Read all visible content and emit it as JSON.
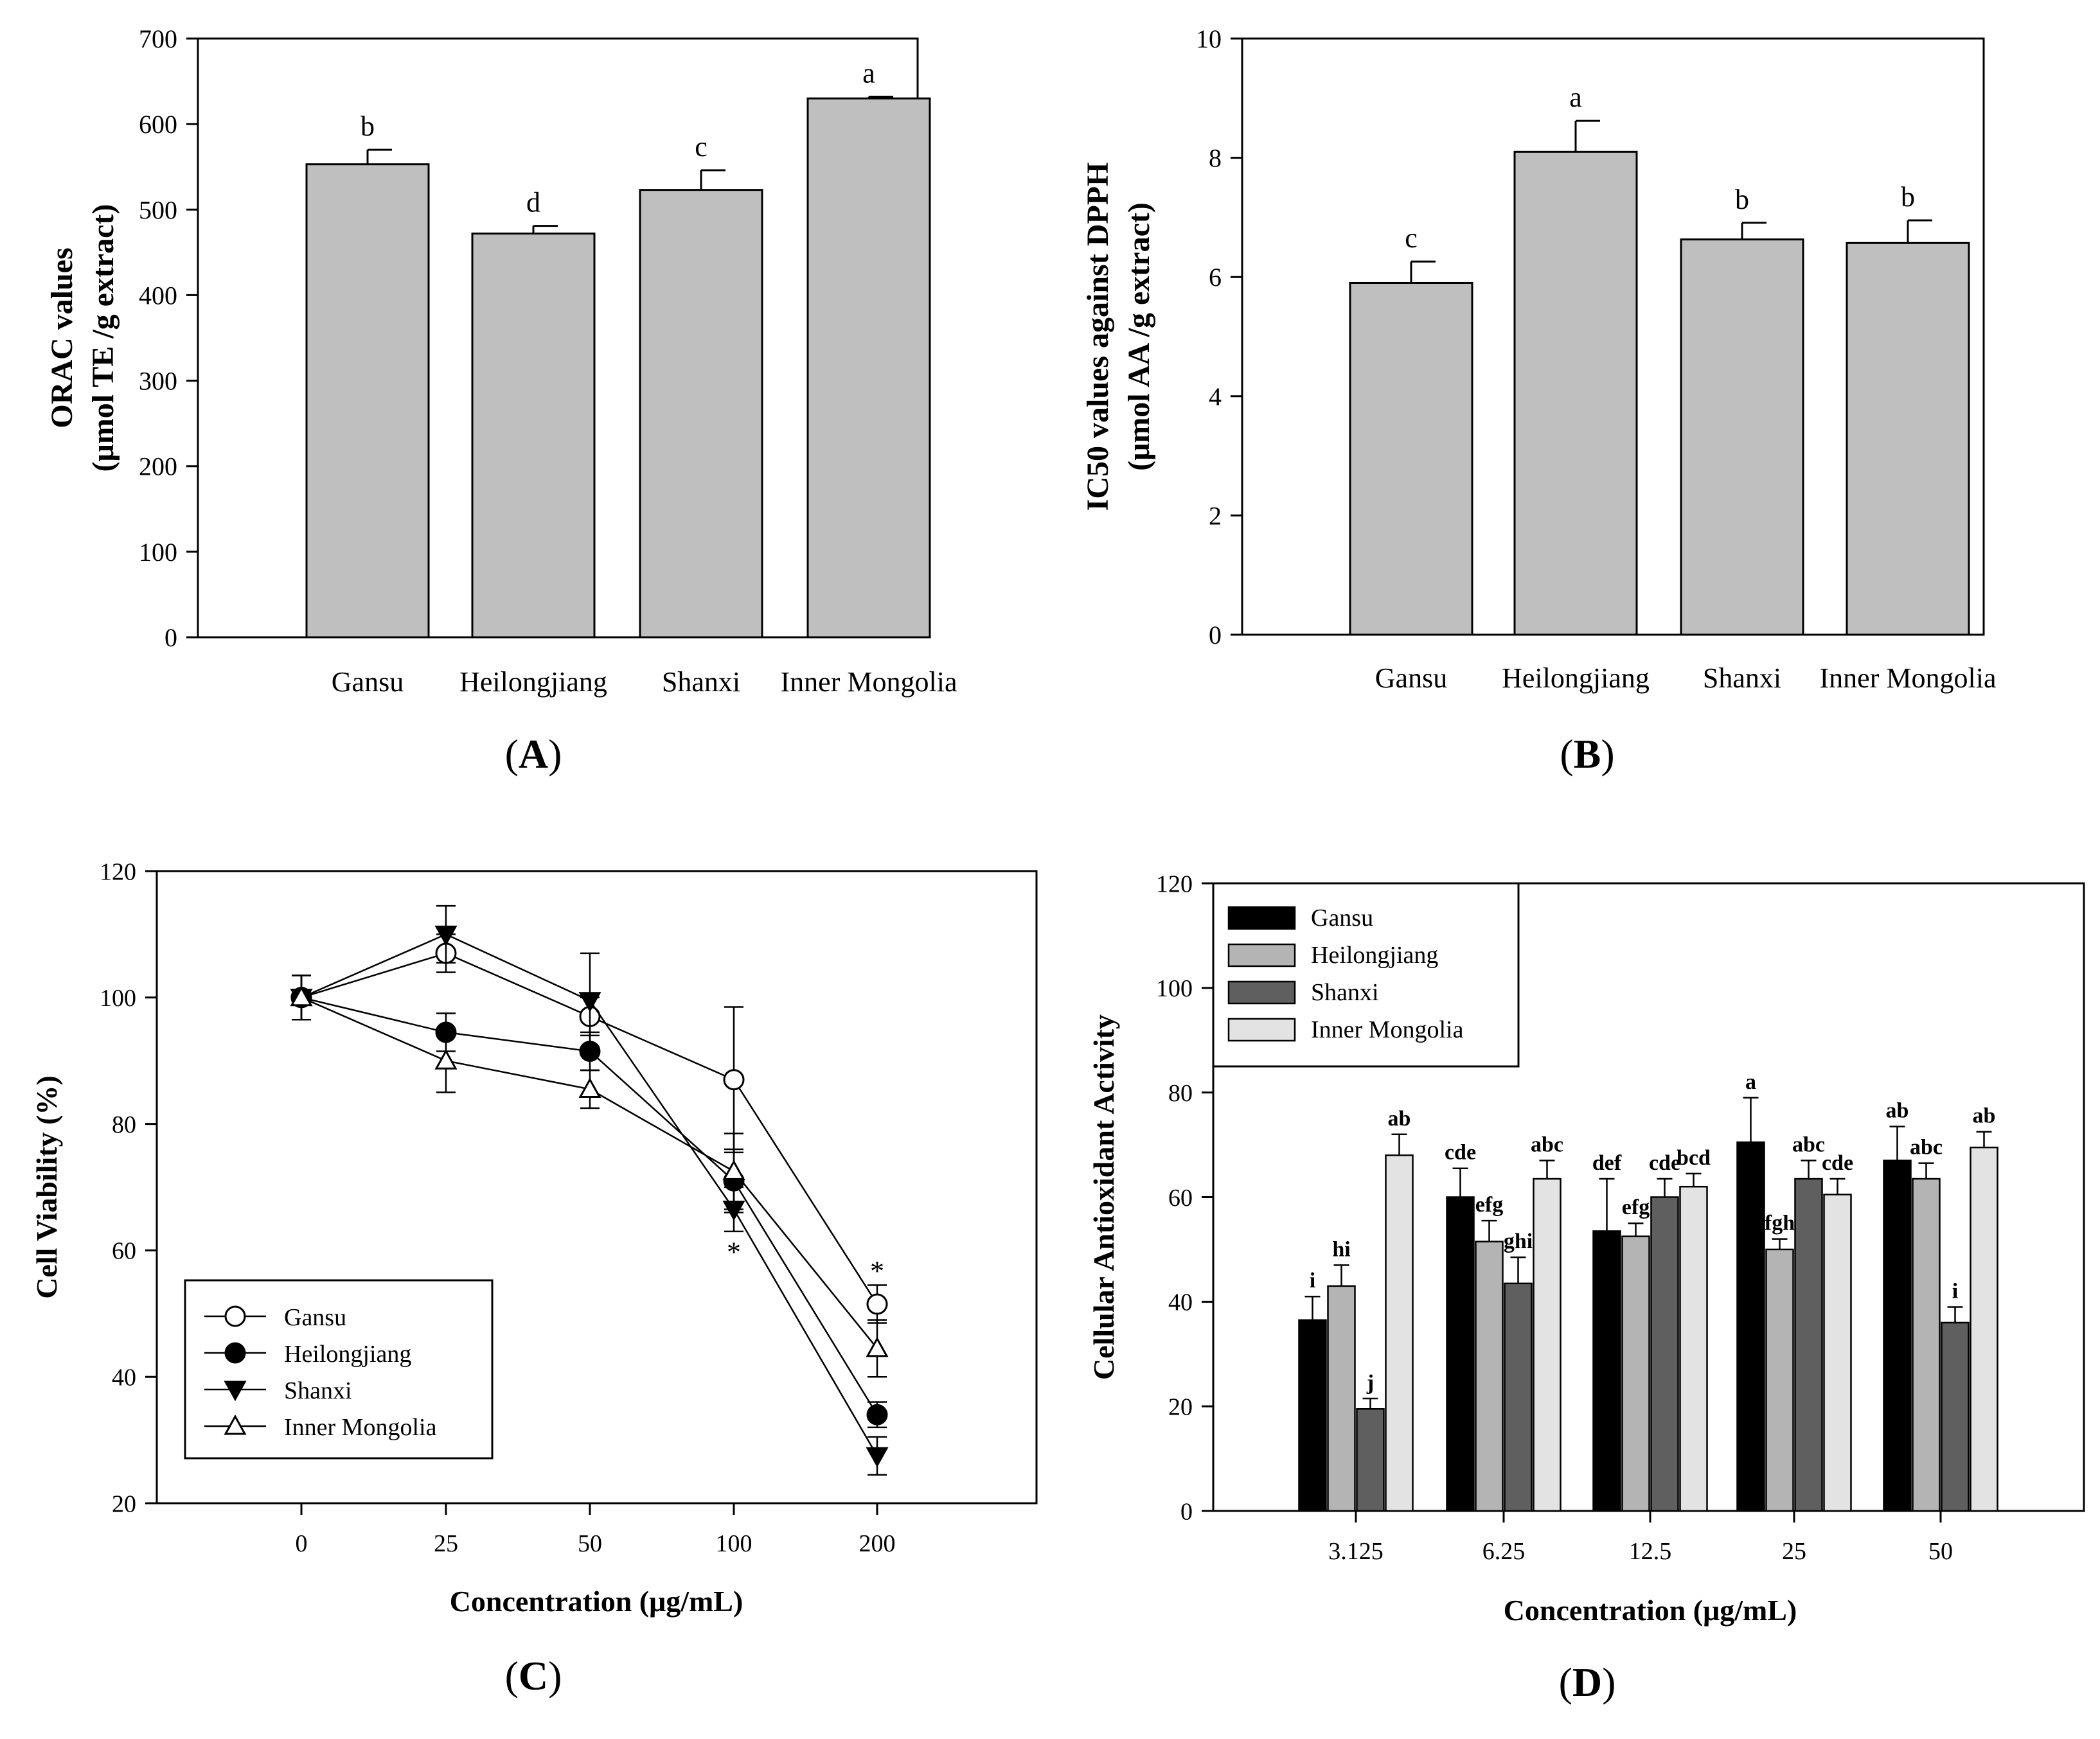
{
  "chart_data": [
    {
      "id": "A",
      "type": "bar",
      "panel_label": "A",
      "categories": [
        "Gansu",
        "Heilongjiang",
        "Shanxi",
        "Inner Mongolia"
      ],
      "values": [
        553,
        472,
        523,
        630
      ],
      "errors": [
        17,
        9,
        23,
        2
      ],
      "letters": [
        "b",
        "d",
        "c",
        "a"
      ],
      "ylabel_lines": [
        "ORAC values",
        "(μmol TE /g extract)"
      ],
      "ylim": [
        0,
        700
      ],
      "yticks": [
        0,
        100,
        200,
        300,
        400,
        500,
        600,
        700
      ],
      "colors": {
        "bar": "#bfbfbf"
      }
    },
    {
      "id": "B",
      "type": "bar",
      "panel_label": "B",
      "categories": [
        "Gansu",
        "Heilongjiang",
        "Shanxi",
        "Inner Mongolia"
      ],
      "values": [
        5.9,
        8.1,
        6.63,
        6.57
      ],
      "errors": [
        0.36,
        0.52,
        0.28,
        0.38
      ],
      "letters": [
        "c",
        "a",
        "b",
        "b"
      ],
      "ylabel_lines": [
        "IC50 values against DPPH",
        "(μmol AA /g  extract)"
      ],
      "ylim": [
        0,
        10
      ],
      "yticks": [
        0,
        2,
        4,
        6,
        8,
        10
      ],
      "colors": {
        "bar": "#bfbfbf"
      }
    },
    {
      "id": "C",
      "type": "line",
      "panel_label": "C",
      "categories": [
        "0",
        "25",
        "50",
        "100",
        "200"
      ],
      "series": [
        {
          "name": "Gansu",
          "marker": "circle-open",
          "values": [
            100,
            107,
            97,
            87,
            51.5
          ],
          "errors": [
            3.5,
            3,
            3,
            11.5,
            3
          ]
        },
        {
          "name": "Heilongjiang",
          "marker": "circle-filled",
          "values": [
            100,
            94.5,
            91.5,
            71,
            34
          ],
          "errors": [
            3.5,
            3,
            3,
            5,
            2
          ]
        },
        {
          "name": "Shanxi",
          "marker": "triangle-down-filled",
          "values": [
            100,
            110,
            99.5,
            66.5,
            27.5
          ],
          "errors": [
            3.5,
            4.5,
            7.5,
            3.5,
            3
          ]
        },
        {
          "name": "Inner Mongolia",
          "marker": "triangle-up-open",
          "values": [
            100,
            90,
            85.5,
            72.5,
            44.5
          ],
          "errors": [
            3.5,
            5,
            3,
            6,
            4.5
          ]
        }
      ],
      "annotations": [
        {
          "category": "100",
          "text": "*",
          "y": 60.5
        },
        {
          "category": "200",
          "text": "*",
          "y": 57.5
        }
      ],
      "xlabel": "Concentration (μg/mL)",
      "ylabel": "Cell Viability (%)",
      "ylim": [
        20,
        120
      ],
      "yticks": [
        20,
        40,
        60,
        80,
        100,
        120
      ],
      "legend_position": "bottom-left"
    },
    {
      "id": "D",
      "type": "bar",
      "panel_label": "D",
      "categories": [
        "3.125",
        "6.25",
        "12.5",
        "25",
        "50"
      ],
      "series": [
        {
          "name": "Gansu",
          "color": "#000000",
          "values": [
            36.5,
            60,
            53.5,
            70.5,
            67
          ],
          "errors": [
            4.5,
            5.5,
            10,
            8.5,
            6.5
          ],
          "letters": [
            "i",
            "cde",
            "def",
            "a",
            "ab"
          ]
        },
        {
          "name": "Heilongjiang",
          "color": "#b4b4b4",
          "values": [
            43,
            51.5,
            52.5,
            50,
            63.5
          ],
          "errors": [
            4,
            4,
            2.5,
            2,
            3
          ],
          "letters": [
            "hi",
            "efg",
            "efg",
            "fgh",
            "abc"
          ]
        },
        {
          "name": "Shanxi",
          "color": "#5f5f5f",
          "values": [
            19.5,
            43.5,
            60,
            63.5,
            36
          ],
          "errors": [
            2,
            5,
            3.5,
            3.5,
            3
          ],
          "letters": [
            "j",
            "ghi",
            "cde",
            "abc",
            "i"
          ]
        },
        {
          "name": "Inner Mongolia",
          "color": "#e3e3e3",
          "values": [
            68,
            63.5,
            62,
            60.5,
            69.5
          ],
          "errors": [
            4,
            3.5,
            2.5,
            3,
            3
          ],
          "letters": [
            "ab",
            "abc",
            "bcd",
            "cde",
            "ab"
          ]
        }
      ],
      "xlabel": "Concentration (μg/mL)",
      "ylabel": "Cellular Antioxidant Activity",
      "ylim": [
        0,
        120
      ],
      "yticks": [
        0,
        20,
        40,
        60,
        80,
        100,
        120
      ],
      "legend_position": "top-left"
    }
  ]
}
